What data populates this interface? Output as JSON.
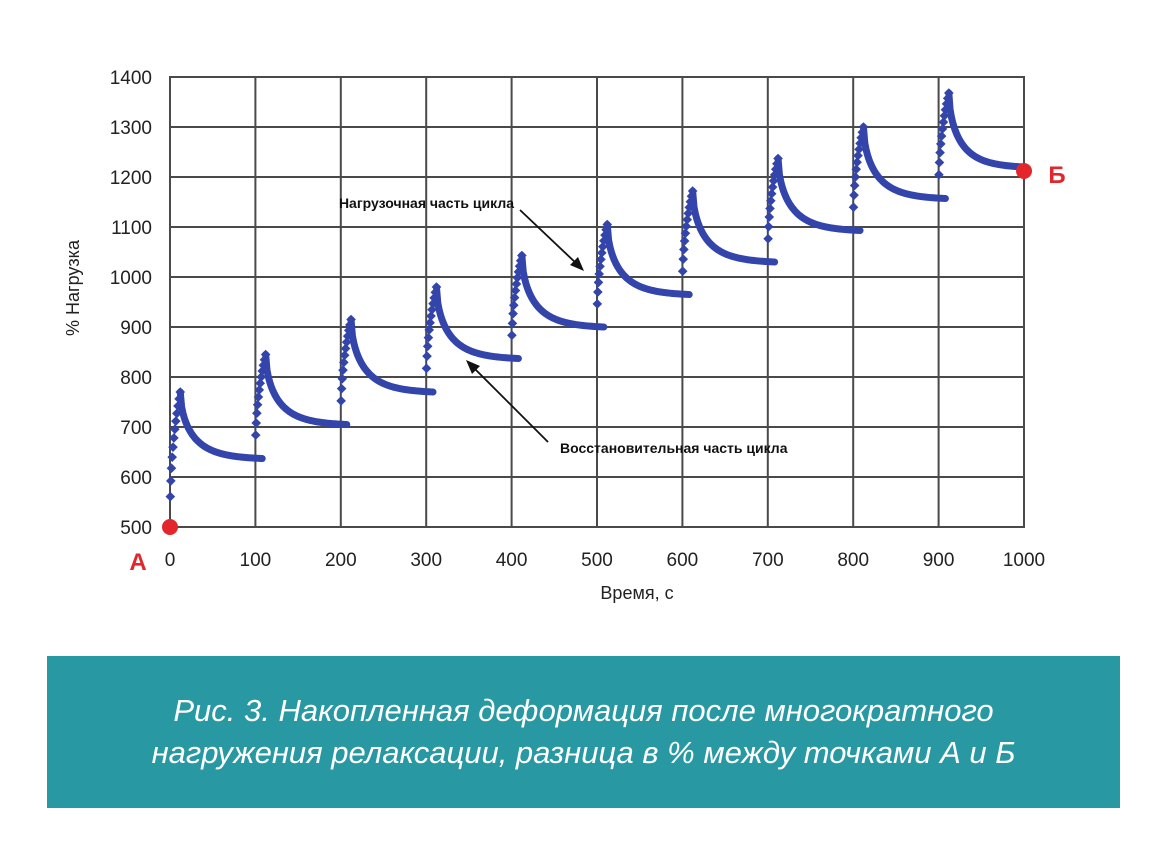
{
  "chart_data": {
    "type": "scatter",
    "title": "",
    "xlabel": "Время, с",
    "ylabel": "% Нагрузка",
    "xlim": [
      0,
      1000
    ],
    "ylim": [
      500,
      1400
    ],
    "x_ticks": [
      0,
      100,
      200,
      300,
      400,
      500,
      600,
      700,
      800,
      900,
      1000
    ],
    "y_ticks": [
      500,
      600,
      700,
      800,
      900,
      1000,
      1100,
      1200,
      1300,
      1400
    ],
    "x_tick_labels": [
      "0",
      "100",
      "200",
      "300",
      "400",
      "500",
      "600",
      "700",
      "800",
      "900",
      "1000"
    ],
    "y_tick_labels": [
      "500",
      "600",
      "700",
      "800",
      "900",
      "1000",
      "1100",
      "1200",
      "1300",
      "1400"
    ],
    "grid": true,
    "series_color": "#3344aa",
    "cycles": [
      {
        "start": 0,
        "peak_time": 12,
        "end": 108,
        "start_value": 500,
        "peak_value": 770,
        "end_value": 637
      },
      {
        "start": 100,
        "peak_time": 112,
        "end": 207,
        "start_value": 637,
        "peak_value": 845,
        "end_value": 705
      },
      {
        "start": 200,
        "peak_time": 212,
        "end": 308,
        "start_value": 705,
        "peak_value": 915,
        "end_value": 770
      },
      {
        "start": 300,
        "peak_time": 312,
        "end": 408,
        "start_value": 770,
        "peak_value": 980,
        "end_value": 837
      },
      {
        "start": 400,
        "peak_time": 412,
        "end": 508,
        "start_value": 837,
        "peak_value": 1043,
        "end_value": 900
      },
      {
        "start": 500,
        "peak_time": 512,
        "end": 608,
        "start_value": 900,
        "peak_value": 1105,
        "end_value": 965
      },
      {
        "start": 600,
        "peak_time": 612,
        "end": 708,
        "start_value": 965,
        "peak_value": 1172,
        "end_value": 1030
      },
      {
        "start": 700,
        "peak_time": 712,
        "end": 808,
        "start_value": 1030,
        "peak_value": 1237,
        "end_value": 1093
      },
      {
        "start": 800,
        "peak_time": 812,
        "end": 908,
        "start_value": 1093,
        "peak_value": 1300,
        "end_value": 1157
      },
      {
        "start": 900,
        "peak_time": 912,
        "end": 1000,
        "start_value": 1157,
        "peak_value": 1368,
        "end_value": 1220
      }
    ],
    "markers": [
      {
        "label": "А",
        "x": 0,
        "y": 500,
        "color": "#e3262b"
      },
      {
        "label": "Б",
        "x": 1000,
        "y": 1220,
        "color": "#e3262b"
      }
    ],
    "annotations": [
      {
        "text": "Нагрузочная часть цикла",
        "arrow_to": [
          490,
          1020
        ]
      },
      {
        "text": "Восстановительная часть цикла",
        "arrow_to": [
          350,
          832
        ]
      }
    ]
  },
  "caption": {
    "line1": "Рис. 3. Накопленная деформация после многократного",
    "line2": "нагружения релаксации, разница в % между точками А и Б"
  }
}
